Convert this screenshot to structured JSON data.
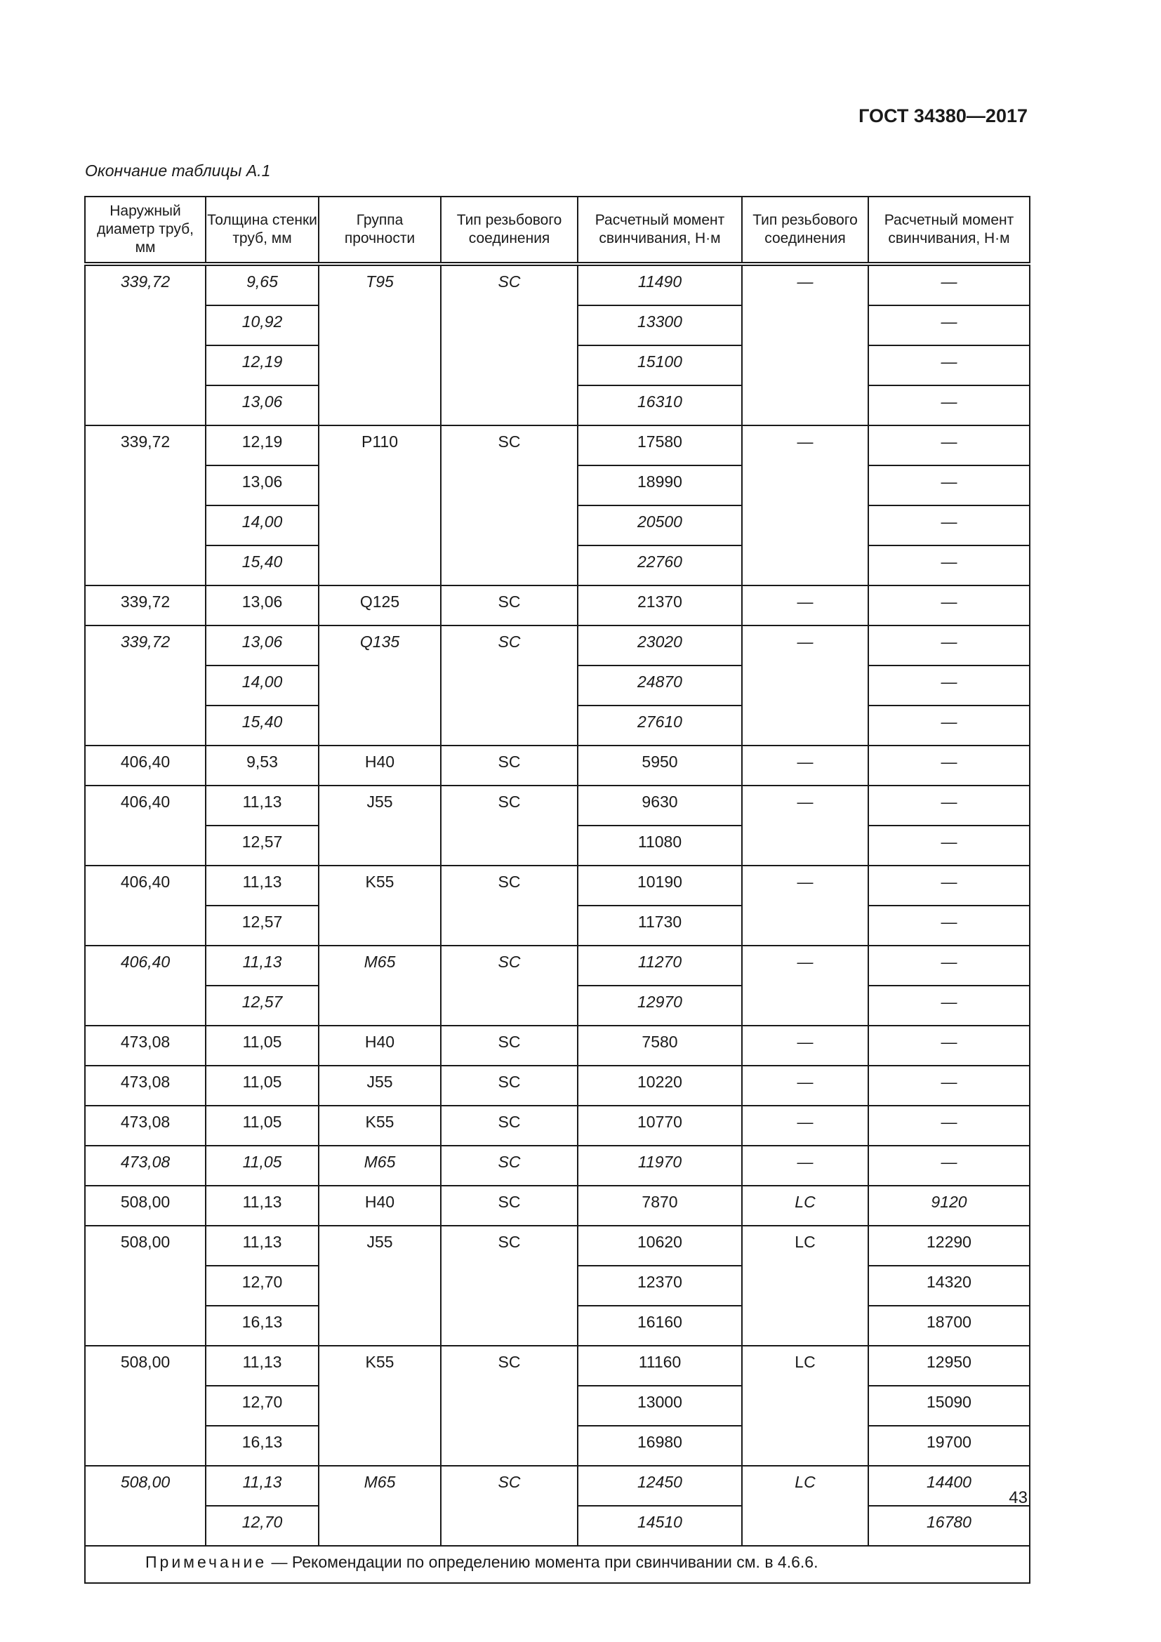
{
  "header": {
    "doc_code": "ГОСТ 34380—2017"
  },
  "caption": "Окончание таблицы А.1",
  "table": {
    "columns": [
      "Наружный диаметр труб, мм",
      "Толщина стенки труб, мм",
      "Группа прочности",
      "Тип резьбового соединения",
      "Расчетный момент свинчивания, Н·м",
      "Тип резьбового соединения",
      "Расчетный момент свинчивания, Н·м"
    ],
    "groups": [
      {
        "d": "339,72",
        "grade": "T95",
        "type": "SC",
        "type2": "—",
        "italic": true,
        "rows": [
          {
            "t": "9,65",
            "m": "11490",
            "m2": "—"
          },
          {
            "t": "10,92",
            "m": "13300",
            "m2": "—"
          },
          {
            "t": "12,19",
            "m": "15100",
            "m2": "—"
          },
          {
            "t": "13,06",
            "m": "16310",
            "m2": "—"
          }
        ]
      },
      {
        "d": "339,72",
        "grade": "P110",
        "type": "SC",
        "type2": "—",
        "italic": false,
        "rows": [
          {
            "t": "12,19",
            "m": "17580",
            "m2": "—"
          },
          {
            "t": "13,06",
            "m": "18990",
            "m2": "—"
          },
          {
            "t": "14,00",
            "m": "20500",
            "m2": "—",
            "italic": true
          },
          {
            "t": "15,40",
            "m": "22760",
            "m2": "—",
            "italic": true
          }
        ]
      },
      {
        "d": "339,72",
        "grade": "Q125",
        "type": "SC",
        "type2": "—",
        "italic": false,
        "rows": [
          {
            "t": "13,06",
            "m": "21370",
            "m2": "—"
          }
        ]
      },
      {
        "d": "339,72",
        "grade": "Q135",
        "type": "SC",
        "type2": "—",
        "italic": true,
        "rows": [
          {
            "t": "13,06",
            "m": "23020",
            "m2": "—"
          },
          {
            "t": "14,00",
            "m": "24870",
            "m2": "—"
          },
          {
            "t": "15,40",
            "m": "27610",
            "m2": "—"
          }
        ]
      },
      {
        "d": "406,40",
        "grade": "H40",
        "type": "SC",
        "type2": "—",
        "italic": false,
        "rows": [
          {
            "t": "9,53",
            "m": "5950",
            "m2": "—"
          }
        ]
      },
      {
        "d": "406,40",
        "grade": "J55",
        "type": "SC",
        "type2": "—",
        "italic": false,
        "rows": [
          {
            "t": "11,13",
            "m": "9630",
            "m2": "—"
          },
          {
            "t": "12,57",
            "m": "11080",
            "m2": "—"
          }
        ]
      },
      {
        "d": "406,40",
        "grade": "K55",
        "type": "SC",
        "type2": "—",
        "italic": false,
        "rows": [
          {
            "t": "11,13",
            "m": "10190",
            "m2": "—"
          },
          {
            "t": "12,57",
            "m": "11730",
            "m2": "—"
          }
        ]
      },
      {
        "d": "406,40",
        "grade": "M65",
        "type": "SC",
        "type2": "—",
        "italic": true,
        "rows": [
          {
            "t": "11,13",
            "m": "11270",
            "m2": "—"
          },
          {
            "t": "12,57",
            "m": "12970",
            "m2": "—"
          }
        ]
      },
      {
        "d": "473,08",
        "grade": "H40",
        "type": "SC",
        "type2": "—",
        "italic": false,
        "rows": [
          {
            "t": "11,05",
            "m": "7580",
            "m2": "—"
          }
        ]
      },
      {
        "d": "473,08",
        "grade": "J55",
        "type": "SC",
        "type2": "—",
        "italic": false,
        "rows": [
          {
            "t": "11,05",
            "m": "10220",
            "m2": "—"
          }
        ]
      },
      {
        "d": "473,08",
        "grade": "K55",
        "type": "SC",
        "type2": "—",
        "italic": false,
        "rows": [
          {
            "t": "11,05",
            "m": "10770",
            "m2": "—"
          }
        ]
      },
      {
        "d": "473,08",
        "grade": "M65",
        "type": "SC",
        "type2": "—",
        "italic": true,
        "rows": [
          {
            "t": "11,05",
            "m": "11970",
            "m2": "—"
          }
        ]
      },
      {
        "d": "508,00",
        "grade": "H40",
        "type": "SC",
        "type2": "LC",
        "italic": false,
        "type2_italic": true,
        "rows": [
          {
            "t": "11,13",
            "m": "7870",
            "m2": "9120",
            "m2_italic": true
          }
        ]
      },
      {
        "d": "508,00",
        "grade": "J55",
        "type": "SC",
        "type2": "LC",
        "italic": false,
        "rows": [
          {
            "t": "11,13",
            "m": "10620",
            "m2": "12290"
          },
          {
            "t": "12,70",
            "m": "12370",
            "m2": "14320"
          },
          {
            "t": "16,13",
            "m": "16160",
            "m2": "18700"
          }
        ]
      },
      {
        "d": "508,00",
        "grade": "K55",
        "type": "SC",
        "type2": "LC",
        "italic": false,
        "rows": [
          {
            "t": "11,13",
            "m": "11160",
            "m2": "12950"
          },
          {
            "t": "12,70",
            "m": "13000",
            "m2": "15090"
          },
          {
            "t": "16,13",
            "m": "16980",
            "m2": "19700"
          }
        ]
      },
      {
        "d": "508,00",
        "grade": "M65",
        "type": "SC",
        "type2": "LC",
        "italic": true,
        "rows": [
          {
            "t": "11,13",
            "m": "12450",
            "m2": "14400"
          },
          {
            "t": "12,70",
            "m": "14510",
            "m2": "16780"
          }
        ]
      }
    ],
    "note_label": "Примечание",
    "note_text": " — Рекомендации по определению момента при свинчивании см. в 4.6.6."
  },
  "page_number": "43"
}
